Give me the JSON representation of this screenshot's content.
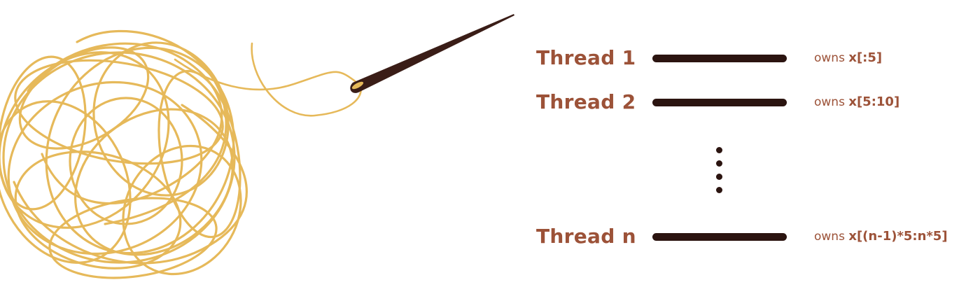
{
  "colors": {
    "yarn": "#e6b95a",
    "needle": "#3a1d17",
    "label": "#9c5238",
    "bar": "#2b1410"
  },
  "illustration": {
    "yarn_icon": "yarn-ball-icon",
    "needle_icon": "needle-icon"
  },
  "threads": [
    {
      "label": "Thread 1",
      "owns_prefix": "owns",
      "slice": "x[:5]"
    },
    {
      "label": "Thread 2",
      "owns_prefix": "owns",
      "slice": "x[5:10]"
    },
    {
      "label": "Thread n",
      "owns_prefix": "owns",
      "slice": "x[(n-1)*5:n*5]"
    }
  ],
  "ellipsis_icon": "vertical-ellipsis-icon"
}
